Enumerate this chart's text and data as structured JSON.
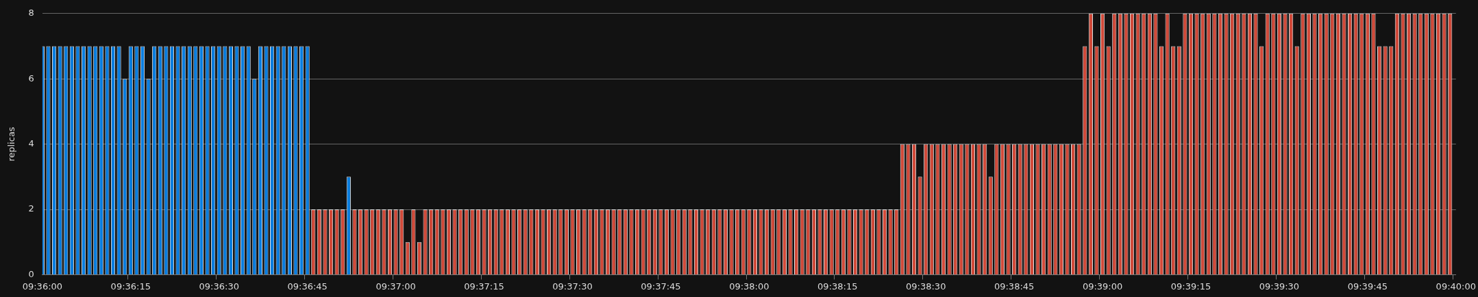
{
  "chart_data": {
    "type": "bar",
    "ylabel": "replicas",
    "ylim": [
      0,
      8
    ],
    "yticks": [
      0,
      2,
      4,
      6,
      8
    ],
    "grid": "y",
    "categories": [
      "09:36:00",
      null,
      null,
      null,
      null,
      null,
      null,
      null,
      null,
      null,
      null,
      null,
      null,
      null,
      null,
      "09:36:15",
      null,
      null,
      null,
      null,
      null,
      null,
      null,
      null,
      null,
      null,
      null,
      null,
      null,
      null,
      "09:36:30",
      null,
      null,
      null,
      null,
      null,
      null,
      null,
      null,
      null,
      null,
      null,
      null,
      null,
      null,
      "09:36:45",
      null,
      null,
      null,
      null,
      null,
      null,
      null,
      null,
      null,
      null,
      null,
      null,
      null,
      null,
      "09:37:00",
      null,
      null,
      null,
      null,
      null,
      null,
      null,
      null,
      null,
      null,
      null,
      null,
      null,
      null,
      "09:37:15",
      null,
      null,
      null,
      null,
      null,
      null,
      null,
      null,
      null,
      null,
      null,
      null,
      null,
      null,
      "09:37:30",
      null,
      null,
      null,
      null,
      null,
      null,
      null,
      null,
      null,
      null,
      null,
      null,
      null,
      null,
      "09:37:45",
      null,
      null,
      null,
      null,
      null,
      null,
      null,
      null,
      null,
      null,
      null,
      null,
      null,
      null,
      "09:38:00",
      null,
      null,
      null,
      null,
      null,
      null,
      null,
      null,
      null,
      null,
      null,
      null,
      null,
      null,
      "09:38:15",
      null,
      null,
      null,
      null,
      null,
      null,
      null,
      null,
      null,
      null,
      null,
      null,
      null,
      null,
      "09:38:30",
      null,
      null,
      null,
      null,
      null,
      null,
      null,
      null,
      null,
      null,
      null,
      null,
      null,
      null,
      "09:38:45",
      null,
      null,
      null,
      null,
      null,
      null,
      null,
      null,
      null,
      null,
      null,
      null,
      null,
      null,
      "09:39:00",
      null,
      null,
      null,
      null,
      null,
      null,
      null,
      null,
      null,
      null,
      null,
      null,
      null,
      null,
      "09:39:15",
      null,
      null,
      null,
      null,
      null,
      null,
      null,
      null,
      null,
      null,
      null,
      null,
      null,
      null,
      "09:39:30",
      null,
      null,
      null,
      null,
      null,
      null,
      null,
      null,
      null,
      null,
      null,
      null,
      null,
      null,
      "09:39:45",
      null,
      null,
      null,
      null,
      null,
      null,
      null,
      null,
      null,
      null,
      null,
      null,
      null,
      null,
      "09:40:00"
    ],
    "series": [
      {
        "color": "#0a7ee0",
        "values": [
          7,
          7,
          7,
          7,
          7,
          7,
          7,
          7,
          7,
          7,
          7,
          7,
          7,
          7,
          6,
          7,
          7,
          7,
          6,
          7,
          7,
          7,
          7,
          7,
          7,
          7,
          7,
          7,
          7,
          7,
          7,
          7,
          7,
          7,
          7,
          7,
          6,
          7,
          7,
          7,
          7,
          7,
          7,
          7,
          7,
          7,
          null,
          null,
          null,
          null,
          null,
          null,
          3,
          null,
          null,
          null,
          null,
          null,
          null,
          null,
          null,
          null,
          null,
          null,
          null,
          null,
          null,
          null,
          null,
          null,
          null,
          null,
          null,
          null,
          null,
          null,
          null,
          null,
          null,
          null,
          null,
          null,
          null,
          null,
          null,
          null,
          null,
          null,
          null,
          null,
          null,
          null,
          null,
          null,
          null,
          null,
          null,
          null,
          null,
          null,
          null,
          null,
          null,
          null,
          null,
          null,
          null,
          null,
          null,
          null,
          null,
          null,
          null,
          null,
          null,
          null,
          null,
          null,
          null,
          null,
          null,
          null,
          null,
          null,
          null,
          null,
          null,
          null,
          null,
          null,
          null,
          null,
          null,
          null,
          null,
          null,
          null,
          null,
          null,
          null,
          null,
          null,
          null,
          null,
          null,
          null,
          null,
          null,
          null,
          null,
          null,
          null,
          null,
          null,
          null,
          null,
          null,
          null,
          null,
          null,
          null,
          null,
          null,
          null,
          null,
          null,
          null,
          null,
          null,
          null,
          null,
          null,
          null,
          null,
          null,
          null,
          null,
          null,
          null,
          null,
          null,
          null,
          null,
          null,
          null,
          null,
          null,
          null,
          null,
          null,
          null,
          null,
          null,
          null,
          null,
          null,
          null,
          null,
          null,
          null,
          null,
          null,
          null,
          null,
          null,
          null,
          null,
          null,
          null,
          null,
          null,
          null,
          null,
          null,
          null,
          null,
          null,
          null,
          null,
          null,
          null,
          null,
          null,
          null,
          null,
          null,
          null,
          null,
          null,
          null,
          null,
          null,
          null,
          null,
          null,
          null,
          null,
          null,
          null,
          null,
          null
        ]
      },
      {
        "color": "#d24a3a",
        "values": [
          null,
          null,
          null,
          null,
          null,
          null,
          null,
          null,
          null,
          null,
          null,
          null,
          null,
          null,
          null,
          null,
          null,
          null,
          null,
          null,
          null,
          null,
          null,
          null,
          null,
          null,
          null,
          null,
          null,
          null,
          null,
          null,
          null,
          null,
          null,
          null,
          null,
          null,
          null,
          null,
          null,
          null,
          null,
          null,
          null,
          null,
          2,
          2,
          2,
          2,
          2,
          2,
          null,
          2,
          2,
          2,
          2,
          2,
          2,
          2,
          2,
          2,
          1,
          2,
          1,
          2,
          2,
          2,
          2,
          2,
          2,
          2,
          2,
          2,
          2,
          2,
          2,
          2,
          2,
          2,
          2,
          2,
          2,
          2,
          2,
          2,
          2,
          2,
          2,
          2,
          2,
          2,
          2,
          2,
          2,
          2,
          2,
          2,
          2,
          2,
          2,
          2,
          2,
          2,
          2,
          2,
          2,
          2,
          2,
          2,
          2,
          2,
          2,
          2,
          2,
          2,
          2,
          2,
          2,
          2,
          2,
          2,
          2,
          2,
          2,
          2,
          2,
          2,
          2,
          2,
          2,
          2,
          2,
          2,
          2,
          2,
          2,
          2,
          2,
          2,
          2,
          2,
          2,
          2,
          2,
          2,
          4,
          4,
          4,
          3,
          4,
          4,
          4,
          4,
          4,
          4,
          4,
          4,
          4,
          4,
          4,
          3,
          4,
          4,
          4,
          4,
          4,
          4,
          4,
          4,
          4,
          4,
          4,
          4,
          4,
          4,
          4,
          7,
          8,
          7,
          8,
          7,
          8,
          8,
          8,
          8,
          8,
          8,
          8,
          8,
          7,
          8,
          7,
          7,
          8,
          8,
          8,
          8,
          8,
          8,
          8,
          8,
          8,
          8,
          8,
          8,
          8,
          7,
          8,
          8,
          8,
          8,
          8,
          7,
          8,
          8,
          8,
          8,
          8,
          8,
          8,
          8,
          8,
          8,
          8,
          8,
          8,
          7,
          7,
          7,
          8,
          8,
          8,
          8,
          8,
          8,
          8,
          8,
          8,
          8,
          null
        ]
      }
    ]
  }
}
